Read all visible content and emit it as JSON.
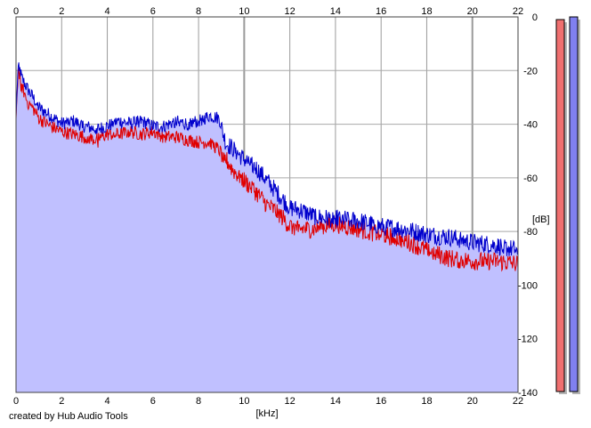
{
  "app": {
    "credit": "created by Hub Audio Tools"
  },
  "meters": {
    "left": {
      "color": "#f07070",
      "level_db": 0
    },
    "right": {
      "color": "#8080f0",
      "level_db": 0
    }
  },
  "chart_data": {
    "type": "area",
    "xlabel": "[kHz]",
    "ylabel": "[dB]",
    "xlim": [
      0,
      22
    ],
    "ylim": [
      -140,
      0
    ],
    "x_ticks": [
      0,
      2,
      4,
      6,
      8,
      10,
      12,
      14,
      16,
      18,
      20,
      22
    ],
    "y_ticks": [
      0,
      -20,
      -40,
      -60,
      -80,
      -100,
      -120,
      -140
    ],
    "grid": true,
    "fill_color": "#c0c0ff",
    "series": [
      {
        "color": "#0000cc",
        "x": [
          0,
          0.1,
          0.25,
          0.5,
          0.8,
          1,
          1.5,
          2,
          2.5,
          3,
          3.5,
          4,
          4.5,
          5,
          5.5,
          6,
          6.5,
          7,
          7.5,
          8,
          8.5,
          8.9,
          9.2,
          9.5,
          10,
          10.5,
          11,
          11.5,
          12,
          12.5,
          13,
          13.5,
          14,
          15,
          16,
          17,
          18,
          19,
          20,
          21,
          22
        ],
        "values": [
          -37,
          -16,
          -22,
          -26,
          -30,
          -33,
          -36,
          -39,
          -38,
          -40,
          -41,
          -40,
          -38,
          -39,
          -38,
          -40,
          -40,
          -38,
          -39,
          -38,
          -36,
          -37,
          -46,
          -48,
          -52,
          -55,
          -60,
          -65,
          -70,
          -71,
          -73,
          -74,
          -74,
          -75,
          -77,
          -78,
          -80,
          -81,
          -83,
          -84,
          -86
        ]
      },
      {
        "color": "#e00000",
        "x": [
          0,
          0.1,
          0.25,
          0.5,
          0.8,
          1,
          1.5,
          2,
          2.5,
          3,
          3.5,
          4,
          4.5,
          5,
          5.5,
          6,
          6.5,
          7,
          7.5,
          8,
          8.5,
          8.9,
          9.2,
          9.5,
          10,
          10.5,
          11,
          11.5,
          12,
          12.5,
          13,
          13.5,
          14,
          15,
          16,
          17,
          18,
          19,
          20,
          21,
          22
        ],
        "values": [
          -38,
          -18,
          -25,
          -31,
          -34,
          -37,
          -40,
          -42,
          -43,
          -44,
          -45,
          -43,
          -43,
          -42,
          -43,
          -42,
          -44,
          -44,
          -45,
          -46,
          -46,
          -49,
          -52,
          -56,
          -60,
          -64,
          -69,
          -72,
          -77,
          -78,
          -78,
          -77,
          -76,
          -78,
          -80,
          -82,
          -86,
          -89,
          -90,
          -90,
          -91
        ]
      }
    ]
  }
}
